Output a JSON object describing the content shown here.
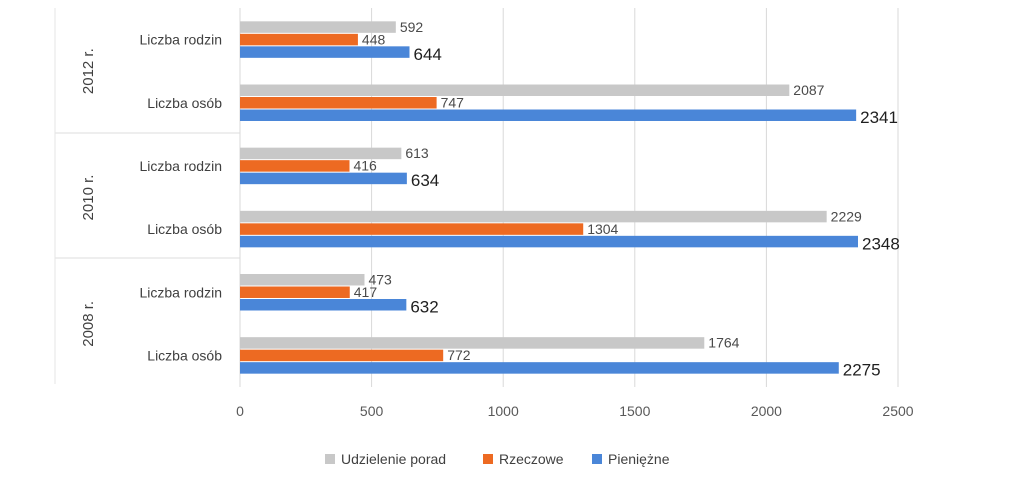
{
  "chart_data": {
    "type": "bar",
    "orientation": "horizontal",
    "grouped_categories": true,
    "groups": [
      {
        "label": "2012 r.",
        "categories": [
          {
            "label": "Liczba rodzin",
            "values": [
              592,
              448,
              644
            ]
          },
          {
            "label": "Liczba osób",
            "values": [
              2087,
              747,
              2341
            ]
          }
        ]
      },
      {
        "label": "2010 r.",
        "categories": [
          {
            "label": "Liczba rodzin",
            "values": [
              613,
              416,
              634
            ]
          },
          {
            "label": "Liczba osób",
            "values": [
              2229,
              1304,
              2348
            ]
          }
        ]
      },
      {
        "label": "2008 r.",
        "categories": [
          {
            "label": "Liczba rodzin",
            "values": [
              473,
              417,
              632
            ]
          },
          {
            "label": "Liczba osób",
            "values": [
              1764,
              772,
              2275
            ]
          }
        ]
      }
    ],
    "series": [
      {
        "name": "Udzielenie porad",
        "color": "#c8c8c8"
      },
      {
        "name": "Rzeczowe",
        "color": "#ed6a22"
      },
      {
        "name": "Pieniężne",
        "color": "#4a86d8"
      }
    ],
    "xlim": [
      0,
      2500
    ],
    "xticks": [
      "0",
      "500",
      "1000",
      "1500",
      "2000",
      "2500"
    ],
    "grid": true,
    "legend_position": "bottom",
    "data_labels": true
  }
}
